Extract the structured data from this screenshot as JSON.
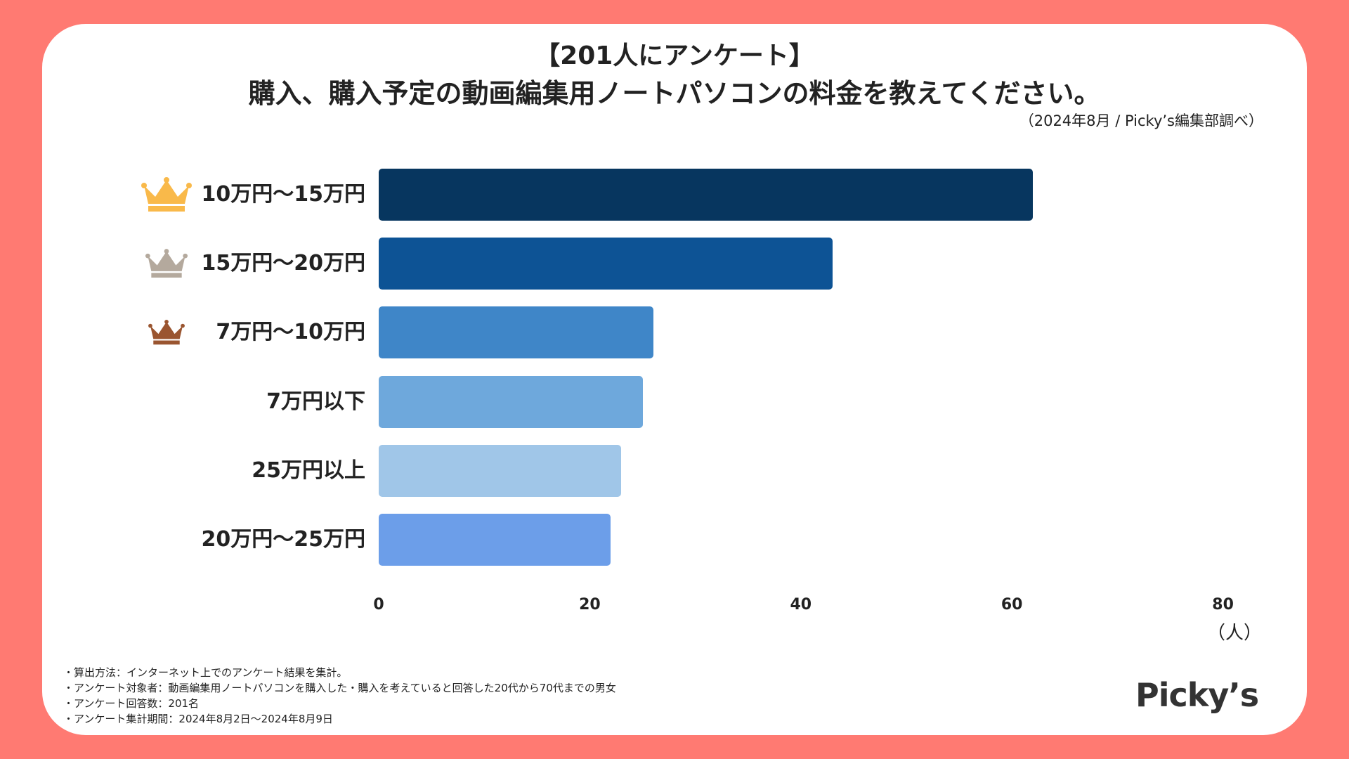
{
  "header": {
    "title_line1": "【201人にアンケート】",
    "title_line2": "購入、購入予定の動画編集用ノートパソコンの料金を教えてください。",
    "source": "（2024年8月 / Picky’s編集部調べ）"
  },
  "chart_data": {
    "type": "bar",
    "orientation": "horizontal",
    "title": "購入、購入予定の動画編集用ノートパソコンの料金を教えてください。",
    "categories": [
      "10万円〜15万円",
      "15万円〜20万円",
      "7万円〜10万円",
      "7万円以下",
      "25万円以上",
      "20万円〜25万円"
    ],
    "values": [
      62,
      43,
      26,
      25,
      23,
      22
    ],
    "colors": [
      "#07365F",
      "#0D5395",
      "#3F86C8",
      "#6EA8DC",
      "#A0C6E8",
      "#6C9EE9"
    ],
    "xlim": [
      0,
      80
    ],
    "xticks": [
      "0",
      "20",
      "40",
      "60",
      "80"
    ],
    "xlabel": "（人）",
    "ranks": [
      {
        "rank": 1,
        "color": "#F9B94A"
      },
      {
        "rank": 2,
        "color": "#B4A99D"
      },
      {
        "rank": 3,
        "color": "#9A5530"
      }
    ],
    "grid": false
  },
  "footnotes": [
    "・算出方法：インターネット上でのアンケート結果を集計。",
    "・アンケート対象者：動画編集用ノートパソコンを購入した・購入を考えていると回答した20代から70代までの男女",
    "・アンケート回答数：201名",
    "・アンケート集計期間：2024年8月2日〜2024年8月9日"
  ],
  "logo": "Picky’s"
}
